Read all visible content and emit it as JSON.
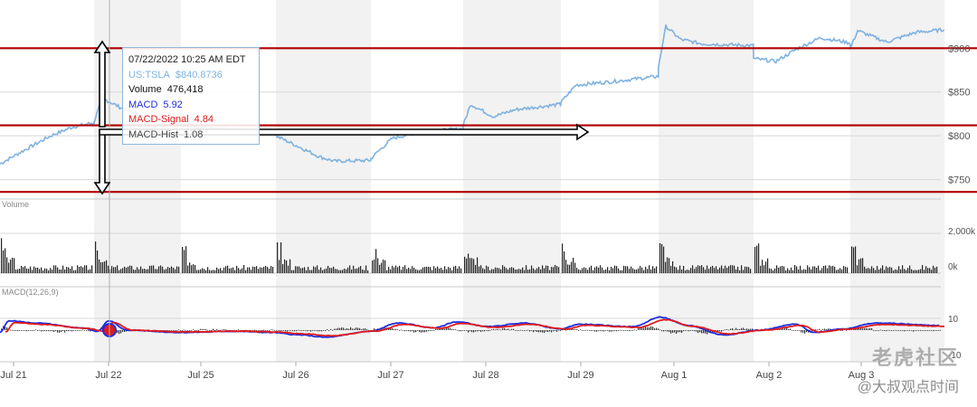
{
  "chart_data": [
    {
      "type": "line",
      "panel": "price",
      "series": [
        {
          "name": "US:TSLA",
          "color": "#7fb2e0",
          "points": [
            [
              "2022-07-21 09:30",
              768
            ],
            [
              "2022-07-21 11:00",
              782
            ],
            [
              "2022-07-21 13:00",
              800
            ],
            [
              "2022-07-21 14:30",
              810
            ],
            [
              "2022-07-21 15:59",
              815
            ],
            [
              "2022-07-22 09:30",
              816
            ],
            [
              "2022-07-22 10:00",
              838
            ],
            [
              "2022-07-22 10:25",
              840.87
            ],
            [
              "2022-07-22 11:30",
              832
            ],
            [
              "2022-07-22 13:00",
              824
            ],
            [
              "2022-07-22 15:59",
              815
            ],
            [
              "2022-07-25 09:30",
              812
            ],
            [
              "2022-07-25 12:00",
              808
            ],
            [
              "2022-07-25 15:59",
              804
            ],
            [
              "2022-07-26 09:30",
              800
            ],
            [
              "2022-07-26 11:00",
              788
            ],
            [
              "2022-07-26 12:30",
              776
            ],
            [
              "2022-07-26 13:30",
              771
            ],
            [
              "2022-07-26 15:59",
              772
            ],
            [
              "2022-07-27 09:30",
              774
            ],
            [
              "2022-07-27 10:00",
              782
            ],
            [
              "2022-07-27 11:00",
              797
            ],
            [
              "2022-07-27 13:00",
              805
            ],
            [
              "2022-07-27 15:59",
              808
            ],
            [
              "2022-07-28 09:30",
              812
            ],
            [
              "2022-07-28 10:00",
              836
            ],
            [
              "2022-07-28 11:30",
              822
            ],
            [
              "2022-07-28 13:00",
              830
            ],
            [
              "2022-07-28 15:59",
              836
            ],
            [
              "2022-07-29 09:30",
              838
            ],
            [
              "2022-07-29 10:30",
              858
            ],
            [
              "2022-07-29 13:00",
              862
            ],
            [
              "2022-07-29 15:59",
              868
            ],
            [
              "2022-08-01 09:30",
              880
            ],
            [
              "2022-08-01 10:00",
              925
            ],
            [
              "2022-08-01 11:00",
              910
            ],
            [
              "2022-08-01 12:30",
              905
            ],
            [
              "2022-08-01 15:59",
              903
            ],
            [
              "2022-08-02 09:30",
              888
            ],
            [
              "2022-08-02 11:00",
              885
            ],
            [
              "2022-08-02 12:30",
              900
            ],
            [
              "2022-08-02 14:00",
              912
            ],
            [
              "2022-08-02 15:59",
              906
            ],
            [
              "2022-08-03 09:30",
              900
            ],
            [
              "2022-08-03 10:00",
              920
            ],
            [
              "2022-08-03 12:00",
              907
            ],
            [
              "2022-08-03 14:00",
              918
            ],
            [
              "2022-08-03 15:59",
              921
            ]
          ]
        }
      ],
      "y_ticks": [
        "$750",
        "$800",
        "$850",
        "$900"
      ],
      "ylim": [
        730,
        955
      ],
      "support_resistance_lines": [
        900,
        812,
        736
      ]
    },
    {
      "type": "bar",
      "panel": "volume",
      "title": "Volume",
      "y_ticks": [
        "0k",
        "2,000k"
      ]
    },
    {
      "type": "line",
      "panel": "macd",
      "title": "MACD(12,26,9)",
      "series": [
        {
          "name": "MACD",
          "color": "#1f2de0"
        },
        {
          "name": "MACD-Signal",
          "color": "#e01b1b"
        },
        {
          "name": "MACD-Hist",
          "color": "#333333"
        }
      ],
      "y_ticks": [
        "10",
        "-10"
      ]
    }
  ],
  "x_axis": {
    "labels": [
      "Jul 21",
      "Jul 22",
      "Jul 25",
      "Jul 26",
      "Jul 27",
      "Jul 28",
      "Jul 29",
      "Aug 1",
      "Aug 2",
      "Aug 3"
    ]
  },
  "tooltip": {
    "datetime": "07/22/2022 10:25 AM EDT",
    "symbol": "US:TSLA",
    "price": "$840.8736",
    "volume_label": "Volume",
    "volume_value": "476,418",
    "macd_label": "MACD",
    "macd_value": "5.92",
    "signal_label": "MACD-Signal",
    "signal_value": "4.84",
    "hist_label": "MACD-Hist",
    "hist_value": "1.08"
  },
  "colors": {
    "price_line": "#7fb2e0",
    "hline": "#b00000",
    "macd": "#1f2de0",
    "signal": "#e01b1b",
    "band": "#f2f2f2",
    "grid": "#d8d8d8"
  },
  "watermark": {
    "logo": "老虎社区",
    "handle": "@大叔观点时间"
  }
}
